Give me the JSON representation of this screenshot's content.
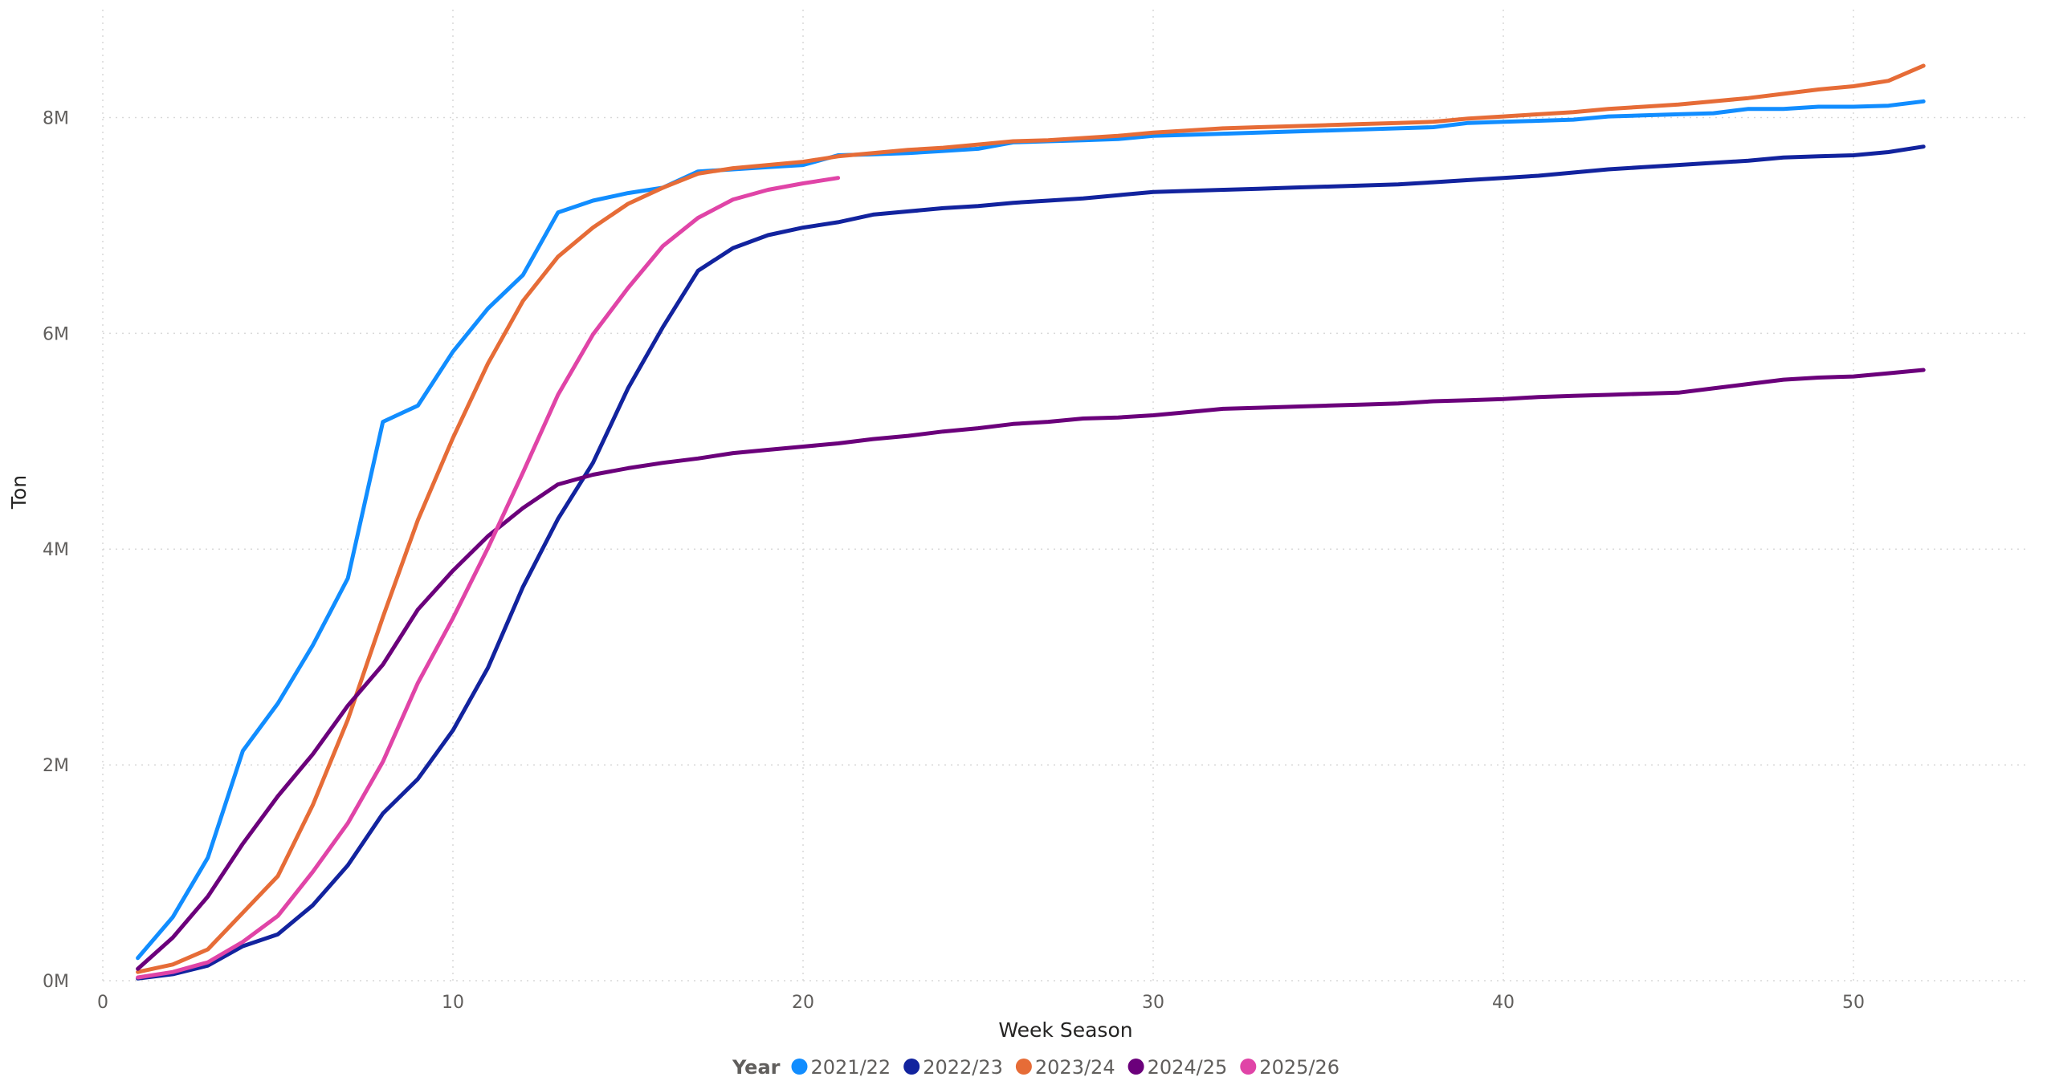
{
  "chart_data": {
    "type": "line",
    "xlabel": "Week Season",
    "ylabel": "Ton",
    "xlim": [
      0,
      55
    ],
    "ylim": [
      0,
      9000000
    ],
    "x_ticks": [
      0,
      10,
      20,
      30,
      40,
      50
    ],
    "x_tick_labels": [
      "0",
      "10",
      "20",
      "30",
      "40",
      "50"
    ],
    "y_ticks": [
      0,
      2000000,
      4000000,
      6000000,
      8000000
    ],
    "y_tick_labels": [
      "0M",
      "2M",
      "4M",
      "6M",
      "8M"
    ],
    "grid": true,
    "legend": {
      "title": "Year",
      "position": "bottom-center"
    },
    "series": [
      {
        "name": "2021/22",
        "color": "#118DFF",
        "x": [
          1,
          2,
          3,
          4,
          5,
          6,
          7,
          8,
          9,
          10,
          11,
          12,
          13,
          14,
          15,
          16,
          17,
          18,
          19,
          20,
          21,
          22,
          23,
          24,
          25,
          26,
          27,
          28,
          29,
          30,
          31,
          32,
          33,
          34,
          35,
          36,
          37,
          38,
          39,
          40,
          41,
          42,
          43,
          44,
          45,
          46,
          47,
          48,
          49,
          50,
          51,
          52
        ],
        "values": [
          210000,
          590000,
          1140000,
          2130000,
          2570000,
          3110000,
          3730000,
          5180000,
          5330000,
          5830000,
          6230000,
          6540000,
          7120000,
          7230000,
          7300000,
          7350000,
          7500000,
          7520000,
          7540000,
          7560000,
          7650000,
          7660000,
          7670000,
          7690000,
          7710000,
          7770000,
          7780000,
          7790000,
          7800000,
          7830000,
          7840000,
          7850000,
          7860000,
          7870000,
          7880000,
          7890000,
          7900000,
          7910000,
          7950000,
          7960000,
          7970000,
          7980000,
          8010000,
          8020000,
          8030000,
          8040000,
          8080000,
          8080000,
          8100000,
          8100000,
          8110000,
          8150000
        ]
      },
      {
        "name": "2022/23",
        "color": "#12239E",
        "x": [
          1,
          2,
          3,
          4,
          5,
          6,
          7,
          8,
          9,
          10,
          11,
          12,
          13,
          14,
          15,
          16,
          17,
          18,
          19,
          20,
          21,
          22,
          23,
          24,
          25,
          26,
          27,
          28,
          29,
          30,
          31,
          32,
          33,
          34,
          35,
          36,
          37,
          38,
          39,
          40,
          41,
          42,
          43,
          44,
          45,
          46,
          47,
          48,
          49,
          50,
          51,
          52
        ],
        "values": [
          20000,
          60000,
          140000,
          320000,
          430000,
          700000,
          1070000,
          1550000,
          1870000,
          2320000,
          2900000,
          3650000,
          4280000,
          4800000,
          5490000,
          6060000,
          6580000,
          6790000,
          6910000,
          6980000,
          7030000,
          7100000,
          7130000,
          7160000,
          7180000,
          7210000,
          7230000,
          7250000,
          7280000,
          7310000,
          7320000,
          7330000,
          7340000,
          7350000,
          7360000,
          7370000,
          7380000,
          7400000,
          7420000,
          7440000,
          7460000,
          7490000,
          7520000,
          7540000,
          7560000,
          7580000,
          7600000,
          7630000,
          7640000,
          7650000,
          7680000,
          7730000
        ]
      },
      {
        "name": "2023/24",
        "color": "#E66C37",
        "x": [
          1,
          2,
          3,
          4,
          5,
          6,
          7,
          8,
          9,
          10,
          11,
          12,
          13,
          14,
          15,
          16,
          17,
          18,
          19,
          20,
          21,
          22,
          23,
          24,
          25,
          26,
          27,
          28,
          29,
          30,
          31,
          32,
          33,
          34,
          35,
          36,
          37,
          38,
          39,
          40,
          41,
          42,
          43,
          44,
          45,
          46,
          47,
          48,
          49,
          50,
          51,
          52
        ],
        "values": [
          80000,
          150000,
          290000,
          630000,
          970000,
          1630000,
          2420000,
          3370000,
          4270000,
          5030000,
          5720000,
          6300000,
          6710000,
          6980000,
          7200000,
          7350000,
          7480000,
          7530000,
          7560000,
          7590000,
          7640000,
          7670000,
          7700000,
          7720000,
          7750000,
          7780000,
          7790000,
          7810000,
          7830000,
          7860000,
          7880000,
          7900000,
          7910000,
          7920000,
          7930000,
          7940000,
          7950000,
          7960000,
          7990000,
          8010000,
          8030000,
          8050000,
          8080000,
          8100000,
          8120000,
          8150000,
          8180000,
          8220000,
          8260000,
          8290000,
          8340000,
          8480000
        ]
      },
      {
        "name": "2024/25",
        "color": "#6B007B",
        "x": [
          1,
          2,
          3,
          4,
          5,
          6,
          7,
          8,
          9,
          10,
          11,
          12,
          13,
          14,
          15,
          16,
          17,
          18,
          19,
          20,
          21,
          22,
          23,
          24,
          25,
          26,
          27,
          28,
          29,
          30,
          31,
          32,
          33,
          34,
          35,
          36,
          37,
          38,
          39,
          40,
          41,
          42,
          43,
          44,
          45,
          46,
          47,
          48,
          49,
          50,
          51,
          52
        ],
        "values": [
          110000,
          400000,
          780000,
          1270000,
          1710000,
          2100000,
          2550000,
          2930000,
          3440000,
          3800000,
          4120000,
          4380000,
          4600000,
          4690000,
          4750000,
          4800000,
          4840000,
          4890000,
          4920000,
          4950000,
          4980000,
          5020000,
          5050000,
          5090000,
          5120000,
          5160000,
          5180000,
          5210000,
          5220000,
          5240000,
          5270000,
          5300000,
          5310000,
          5320000,
          5330000,
          5340000,
          5350000,
          5370000,
          5380000,
          5390000,
          5410000,
          5420000,
          5430000,
          5440000,
          5450000,
          5490000,
          5530000,
          5570000,
          5590000,
          5600000,
          5630000,
          5660000
        ]
      },
      {
        "name": "2025/26",
        "color": "#E044A7",
        "x": [
          1,
          2,
          3,
          4,
          5,
          6,
          7,
          8,
          9,
          10,
          11,
          12,
          13,
          14,
          15,
          16,
          17,
          18,
          19,
          20,
          21
        ],
        "values": [
          30000,
          80000,
          170000,
          360000,
          600000,
          1010000,
          1460000,
          2030000,
          2760000,
          3360000,
          4010000,
          4710000,
          5430000,
          5990000,
          6420000,
          6810000,
          7070000,
          7240000,
          7330000,
          7390000,
          7440000
        ]
      }
    ]
  }
}
